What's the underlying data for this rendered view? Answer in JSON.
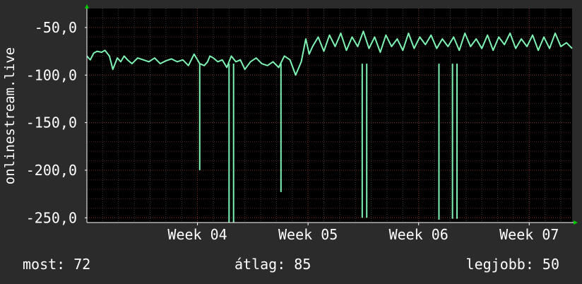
{
  "chart_data": {
    "type": "line",
    "ylabel": "onlinestream.live",
    "ylim": [
      -255,
      -30
    ],
    "yticks": [
      {
        "value": -50,
        "label": "-50,0"
      },
      {
        "value": -100,
        "label": "-100,0"
      },
      {
        "value": -150,
        "label": "-150,0"
      },
      {
        "value": -200,
        "label": "-200,0"
      },
      {
        "value": -250,
        "label": "-250,0"
      }
    ],
    "xlim": [
      0,
      43
    ],
    "xticks": [
      {
        "value": 9.8,
        "label": "Week 04"
      },
      {
        "value": 19.6,
        "label": "Week 05"
      },
      {
        "value": 29.4,
        "label": "Week 06"
      },
      {
        "value": 39.2,
        "label": "Week 07"
      }
    ],
    "grid": true,
    "line_color": "#7ef3b4",
    "x": [
      0,
      0.3,
      0.6,
      0.9,
      1.3,
      1.6,
      2.0,
      2.3,
      2.7,
      3.0,
      3.3,
      3.6,
      4.0,
      4.5,
      5.0,
      5.5,
      6.0,
      6.5,
      7.0,
      7.5,
      8.0,
      8.5,
      9.0,
      9.5,
      10.0,
      10.4,
      10.7,
      10.9,
      11.2,
      11.6,
      12.0,
      12.4,
      12.8,
      13.2,
      13.6,
      14.0,
      14.5,
      15.0,
      15.5,
      16.0,
      16.5,
      17.0,
      17.5,
      18.0,
      18.5,
      19.0,
      19.4,
      19.7,
      20.0,
      20.5,
      21.0,
      21.5,
      22.0,
      22.5,
      23.0,
      23.5,
      24.0,
      24.5,
      25.0,
      25.5,
      26.0,
      26.5,
      27.0,
      27.5,
      28.0,
      28.5,
      29.0,
      29.5,
      30.0,
      30.5,
      31.0,
      31.5,
      32.0,
      32.5,
      33.0,
      33.5,
      34.0,
      34.5,
      35.0,
      35.5,
      36.0,
      36.5,
      37.0,
      37.5,
      38.0,
      38.5,
      39.0,
      39.5,
      40.0,
      40.5,
      41.0,
      41.5,
      42.0,
      42.5,
      43.0
    ],
    "values": [
      -80,
      -84,
      -77,
      -75,
      -76,
      -74,
      -80,
      -94,
      -82,
      -86,
      -80,
      -84,
      -88,
      -82,
      -84,
      -86,
      -82,
      -88,
      -85,
      -83,
      -86,
      -84,
      -90,
      -78,
      -88,
      -90,
      -86,
      -80,
      -82,
      -86,
      -84,
      -92,
      -80,
      -86,
      -84,
      -94,
      -86,
      -82,
      -88,
      -90,
      -86,
      -92,
      -80,
      -84,
      -100,
      -86,
      -62,
      -78,
      -70,
      -60,
      -75,
      -58,
      -70,
      -56,
      -74,
      -60,
      -70,
      -54,
      -72,
      -60,
      -76,
      -58,
      -70,
      -62,
      -74,
      -56,
      -72,
      -60,
      -68,
      -58,
      -72,
      -62,
      -70,
      -60,
      -74,
      -56,
      -70,
      -62,
      -72,
      -58,
      -74,
      -60,
      -68,
      -56,
      -72,
      -62,
      -70,
      -58,
      -74,
      -60,
      -72,
      -56,
      -70,
      -66,
      -72
    ],
    "gaps": [
      {
        "x": 10.0,
        "y": -200
      },
      {
        "x": 12.6,
        "y": -255
      },
      {
        "x": 13.0,
        "y": -255
      },
      {
        "x": 17.2,
        "y": -223
      },
      {
        "x": 24.4,
        "y": -250
      },
      {
        "x": 24.8,
        "y": -250
      },
      {
        "x": 31.2,
        "y": -252
      },
      {
        "x": 32.4,
        "y": -251
      },
      {
        "x": 32.8,
        "y": -251
      }
    ]
  },
  "stats": {
    "current": "most: 72",
    "average": "átlag: 85",
    "best": "legjobb: 50"
  }
}
